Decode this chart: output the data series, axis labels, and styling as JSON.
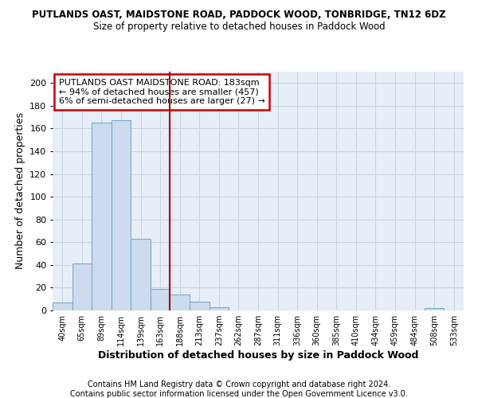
{
  "title": "PUTLANDS OAST, MAIDSTONE ROAD, PADDOCK WOOD, TONBRIDGE, TN12 6DZ",
  "subtitle": "Size of property relative to detached houses in Paddock Wood",
  "xlabel": "Distribution of detached houses by size in Paddock Wood",
  "ylabel": "Number of detached properties",
  "bar_labels": [
    "40sqm",
    "65sqm",
    "89sqm",
    "114sqm",
    "139sqm",
    "163sqm",
    "188sqm",
    "213sqm",
    "237sqm",
    "262sqm",
    "287sqm",
    "311sqm",
    "336sqm",
    "360sqm",
    "385sqm",
    "410sqm",
    "434sqm",
    "459sqm",
    "484sqm",
    "508sqm",
    "533sqm"
  ],
  "bar_heights": [
    7,
    41,
    165,
    167,
    63,
    19,
    14,
    8,
    3,
    0,
    0,
    0,
    0,
    0,
    0,
    0,
    0,
    0,
    0,
    2,
    0
  ],
  "bar_color": "#ccdcee",
  "bar_edgecolor": "#7aaaca",
  "vline_x": 5.5,
  "vline_color": "#aa0000",
  "annotation_text": "PUTLANDS OAST MAIDSTONE ROAD: 183sqm\n← 94% of detached houses are smaller (457)\n6% of semi-detached houses are larger (27) →",
  "annotation_box_color": "#cc0000",
  "ylim": [
    0,
    210
  ],
  "yticks": [
    0,
    20,
    40,
    60,
    80,
    100,
    120,
    140,
    160,
    180,
    200
  ],
  "grid_color": "#c8d4e4",
  "bg_color": "#e8eef8",
  "footer1": "Contains HM Land Registry data © Crown copyright and database right 2024.",
  "footer2": "Contains public sector information licensed under the Open Government Licence v3.0."
}
